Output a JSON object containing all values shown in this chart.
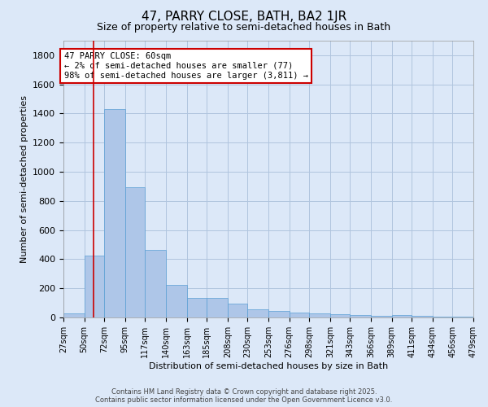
{
  "title": "47, PARRY CLOSE, BATH, BA2 1JR",
  "subtitle": "Size of property relative to semi-detached houses in Bath",
  "xlabel": "Distribution of semi-detached houses by size in Bath",
  "ylabel": "Number of semi-detached properties",
  "annotation_title": "47 PARRY CLOSE: 60sqm",
  "annotation_line1": "← 2% of semi-detached houses are smaller (77)",
  "annotation_line2": "98% of semi-detached houses are larger (3,811) →",
  "property_size": 60,
  "bin_edges": [
    27,
    50,
    72,
    95,
    117,
    140,
    163,
    185,
    208,
    230,
    253,
    276,
    298,
    321,
    343,
    366,
    389,
    411,
    434,
    456,
    479
  ],
  "bar_heights": [
    30,
    425,
    1430,
    895,
    465,
    225,
    135,
    135,
    95,
    58,
    45,
    35,
    30,
    20,
    14,
    10,
    14,
    10,
    6,
    3
  ],
  "bar_color": "#aec6e8",
  "bar_edge_color": "#5a9fd4",
  "vline_color": "#cc0000",
  "vline_x": 60,
  "ylim": [
    0,
    1900
  ],
  "yticks": [
    0,
    200,
    400,
    600,
    800,
    1000,
    1200,
    1400,
    1600,
    1800
  ],
  "bg_color": "#dce8f8",
  "plot_bg_color": "#dce8f8",
  "grid_color": "#b0c4de",
  "footer_line1": "Contains HM Land Registry data © Crown copyright and database right 2025.",
  "footer_line2": "Contains public sector information licensed under the Open Government Licence v3.0.",
  "title_fontsize": 11,
  "subtitle_fontsize": 9,
  "axis_label_fontsize": 8,
  "annotation_box_color": "#cc0000",
  "tick_label_fontsize": 7,
  "footer_fontsize": 6,
  "ylabel_fontsize": 8
}
